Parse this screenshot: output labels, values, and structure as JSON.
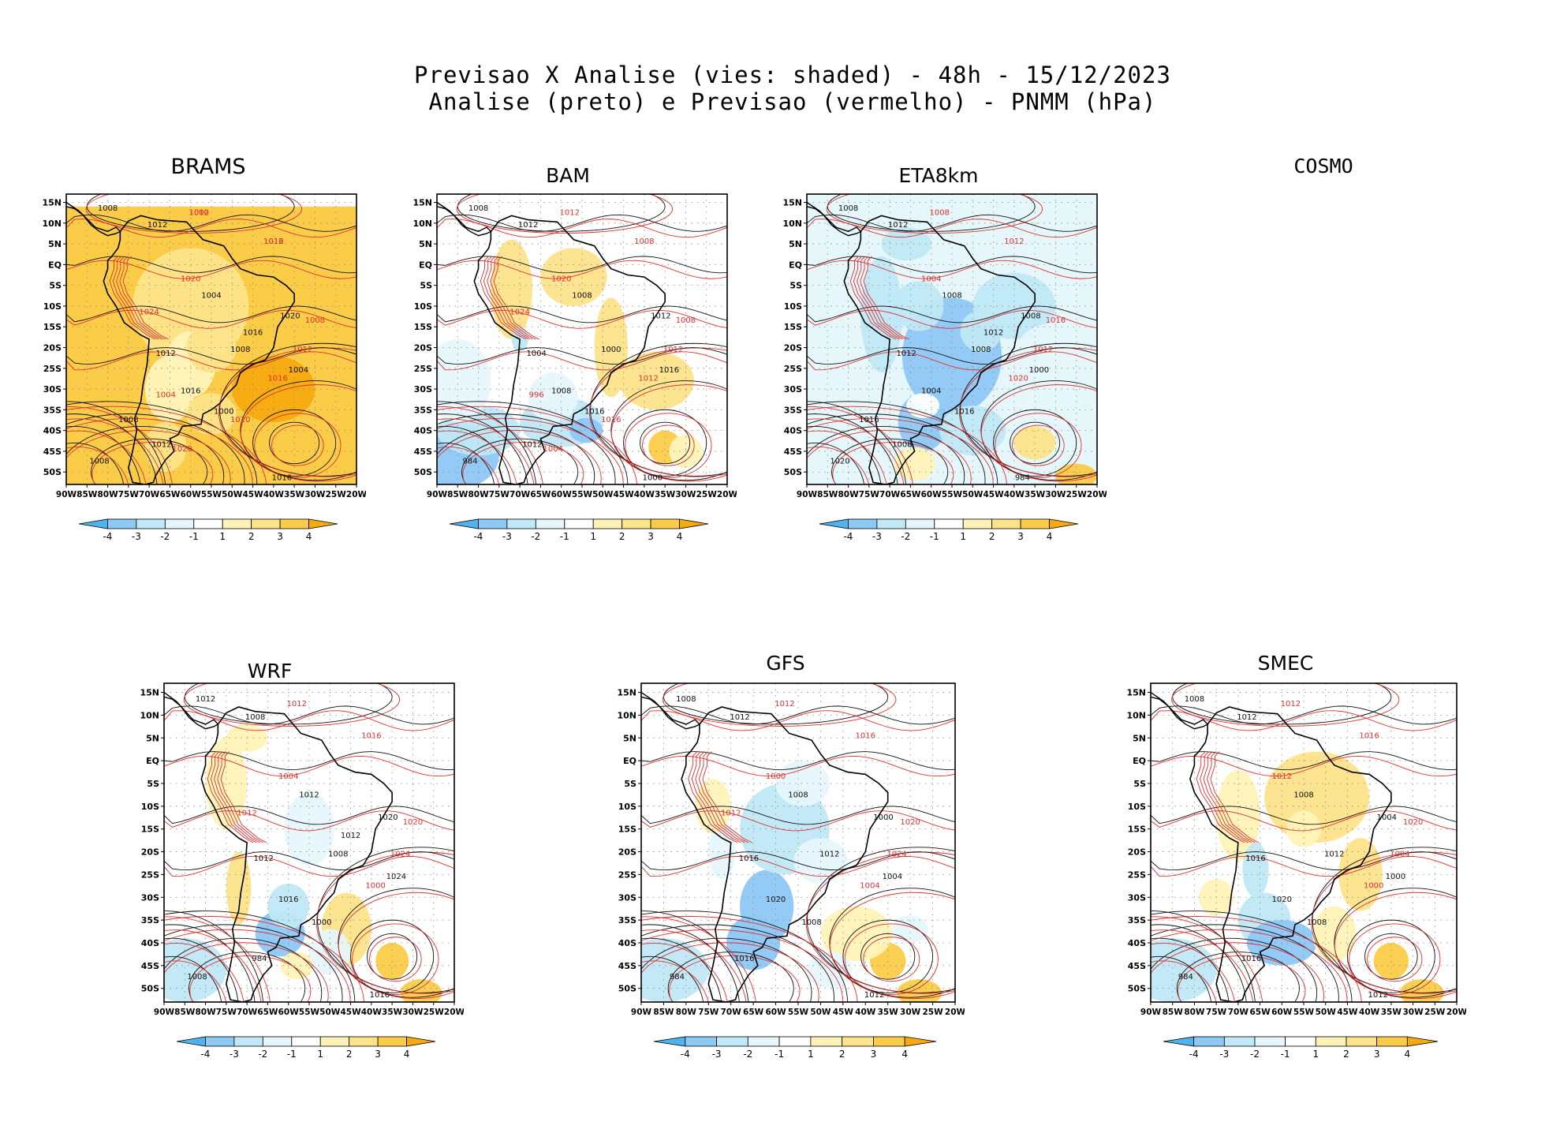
{
  "header": {
    "line1": "Previsao X Analise (vies: shaded) - 48h - 15/12/2023",
    "line2": "Analise (preto) e Previsao (vermelho) - PNMM (hPa)"
  },
  "colors": {
    "neg4": "#4fb4ee",
    "neg3": "#8ec8f5",
    "neg2": "#c0e8f6",
    "neg1": "#e6f7fb",
    "neutral": "#ffffff",
    "pos1": "#fff3b8",
    "pos2": "#fde38a",
    "pos3": "#fbcc48",
    "pos4": "#f7aa0f",
    "analysis_contour": "#111111",
    "forecast_contour": "#e03030"
  },
  "chart_data": [
    {
      "type": "heatmap",
      "model": "BRAMS",
      "title": "BRAMS",
      "lon_range": [
        -90,
        -20
      ],
      "lat_range": [
        -53,
        17
      ],
      "xticks": [
        "90W",
        "85W",
        "80W",
        "75W",
        "70W",
        "65W",
        "60W",
        "55W",
        "50W",
        "45W",
        "40W",
        "35W",
        "30W",
        "25W",
        "20W"
      ],
      "yticks": [
        "15N",
        "10N",
        "5N",
        "EQ",
        "5S",
        "10S",
        "15S",
        "20S",
        "25S",
        "30S",
        "35S",
        "40S",
        "45S",
        "50S"
      ],
      "colorbar_ticks": [
        "-4",
        "-3",
        "-2",
        "-1",
        "1",
        "2",
        "3",
        "4"
      ],
      "bias_dominant": "positive (+2 to +4 hPa)",
      "analysis_labels": [
        "1008",
        "1012",
        "1004",
        "1008",
        "1012",
        "1016",
        "1020",
        "1004",
        "1000",
        "1008",
        "1012",
        "1016",
        "1016",
        "1008"
      ],
      "forecast_labels": [
        "1012",
        "1012",
        "1008",
        "1012",
        "1016",
        "1020",
        "1024",
        "1020",
        "1020",
        "1004",
        "1000",
        "1016"
      ],
      "available": true
    },
    {
      "type": "heatmap",
      "model": "BAM",
      "title": "BAM",
      "lon_range": [
        -90,
        -20
      ],
      "lat_range": [
        -53,
        17
      ],
      "xticks": [
        "90W",
        "85W",
        "80W",
        "75W",
        "70W",
        "65W",
        "60W",
        "55W",
        "50W",
        "45W",
        "40W",
        "35W",
        "30W",
        "25W",
        "20W"
      ],
      "yticks": [
        "15N",
        "10N",
        "5N",
        "EQ",
        "5S",
        "10S",
        "15S",
        "20S",
        "25S",
        "30S",
        "35S",
        "40S",
        "45S",
        "50S"
      ],
      "colorbar_ticks": [
        "-4",
        "-3",
        "-2",
        "-1",
        "1",
        "2",
        "3",
        "4"
      ],
      "bias_dominant": "mixed; negative over southern South America",
      "analysis_labels": [
        "1008",
        "1012",
        "1008",
        "1000",
        "1004",
        "1008",
        "1012",
        "1016",
        "1016",
        "984",
        "1012",
        "1000"
      ],
      "forecast_labels": [
        "1012",
        "1008",
        "1008",
        "1012",
        "1012",
        "1020",
        "1024",
        "1016",
        "1004",
        "996"
      ],
      "available": true
    },
    {
      "type": "heatmap",
      "model": "ETA8km",
      "title": "ETA8km",
      "lon_range": [
        -90,
        -20
      ],
      "lat_range": [
        -53,
        17
      ],
      "xticks": [
        "90W",
        "85W",
        "80W",
        "75W",
        "70W",
        "65W",
        "60W",
        "55W",
        "50W",
        "45W",
        "40W",
        "35W",
        "30W",
        "25W",
        "20W"
      ],
      "yticks": [
        "15N",
        "10N",
        "5N",
        "EQ",
        "5S",
        "10S",
        "15S",
        "20S",
        "25S",
        "30S",
        "35S",
        "40S",
        "45S",
        "50S"
      ],
      "colorbar_ticks": [
        "-4",
        "-3",
        "-2",
        "-1",
        "1",
        "2",
        "3",
        "4"
      ],
      "bias_dominant": "negative (-1 to -4 hPa)",
      "analysis_labels": [
        "1008",
        "1012",
        "1008",
        "1008",
        "1012",
        "1004",
        "1008",
        "1000",
        "1016",
        "1020",
        "1008",
        "984",
        "1012",
        "1016"
      ],
      "forecast_labels": [
        "1008",
        "1012",
        "1016",
        "1012",
        "1020",
        "1004"
      ],
      "available": true
    },
    {
      "type": "heatmap",
      "model": "COSMO",
      "title": "COSMO",
      "available": false
    },
    {
      "type": "heatmap",
      "model": "WRF",
      "title": "WRF",
      "lon_range": [
        -90,
        -20
      ],
      "lat_range": [
        -53,
        17
      ],
      "xticks": [
        "90W",
        "85W",
        "80W",
        "75W",
        "70W",
        "65W",
        "60W",
        "55W",
        "50W",
        "45W",
        "40W",
        "35W",
        "30W",
        "25W",
        "20W"
      ],
      "yticks": [
        "15N",
        "10N",
        "5N",
        "EQ",
        "5S",
        "10S",
        "15S",
        "20S",
        "25S",
        "30S",
        "35S",
        "40S",
        "45S",
        "50S"
      ],
      "colorbar_ticks": [
        "-4",
        "-3",
        "-2",
        "-1",
        "1",
        "2",
        "3",
        "4"
      ],
      "bias_dominant": "mixed; positive east of Argentina",
      "analysis_labels": [
        "1012",
        "1008",
        "1012",
        "1008",
        "1012",
        "1016",
        "1020",
        "1024",
        "1000",
        "1008",
        "984",
        "1016",
        "1012"
      ],
      "forecast_labels": [
        "1012",
        "1016",
        "1020",
        "1024",
        "1000",
        "1004",
        "1012"
      ],
      "available": true
    },
    {
      "type": "heatmap",
      "model": "GFS",
      "title": "GFS",
      "lon_range": [
        -90,
        -20
      ],
      "lat_range": [
        -53,
        17
      ],
      "xticks": [
        "90W",
        "85W",
        "80W",
        "75W",
        "70W",
        "65W",
        "60W",
        "55W",
        "50W",
        "45W",
        "40W",
        "35W",
        "30W",
        "25W",
        "20W"
      ],
      "yticks": [
        "15N",
        "10N",
        "5N",
        "EQ",
        "5S",
        "10S",
        "15S",
        "20S",
        "25S",
        "30S",
        "35S",
        "40S",
        "45S",
        "50S"
      ],
      "colorbar_ticks": [
        "-4",
        "-3",
        "-2",
        "-1",
        "1",
        "2",
        "3",
        "4"
      ],
      "bias_dominant": "negative over central continent",
      "analysis_labels": [
        "1008",
        "1012",
        "1008",
        "1012",
        "1016",
        "1020",
        "1000",
        "1004",
        "1008",
        "984",
        "1016",
        "1012"
      ],
      "forecast_labels": [
        "1012",
        "1016",
        "1020",
        "1024",
        "1004",
        "1000",
        "1012"
      ],
      "available": true
    },
    {
      "type": "heatmap",
      "model": "SMEC",
      "title": "SMEC",
      "lon_range": [
        -90,
        -20
      ],
      "lat_range": [
        -53,
        17
      ],
      "xticks": [
        "90W",
        "85W",
        "80W",
        "75W",
        "70W",
        "65W",
        "60W",
        "55W",
        "50W",
        "45W",
        "40W",
        "35W",
        "30W",
        "25W",
        "20W"
      ],
      "yticks": [
        "15N",
        "10N",
        "5N",
        "EQ",
        "5S",
        "10S",
        "15S",
        "20S",
        "25S",
        "30S",
        "35S",
        "40S",
        "45S",
        "50S"
      ],
      "colorbar_ticks": [
        "-4",
        "-3",
        "-2",
        "-1",
        "1",
        "2",
        "3",
        "4"
      ],
      "bias_dominant": "positive north, negative south",
      "analysis_labels": [
        "1008",
        "1012",
        "1008",
        "1012",
        "1016",
        "1020",
        "1004",
        "1000",
        "1008",
        "984",
        "1016",
        "1012"
      ],
      "forecast_labels": [
        "1012",
        "1016",
        "1020",
        "1004",
        "1000",
        "1012"
      ],
      "available": true
    }
  ]
}
